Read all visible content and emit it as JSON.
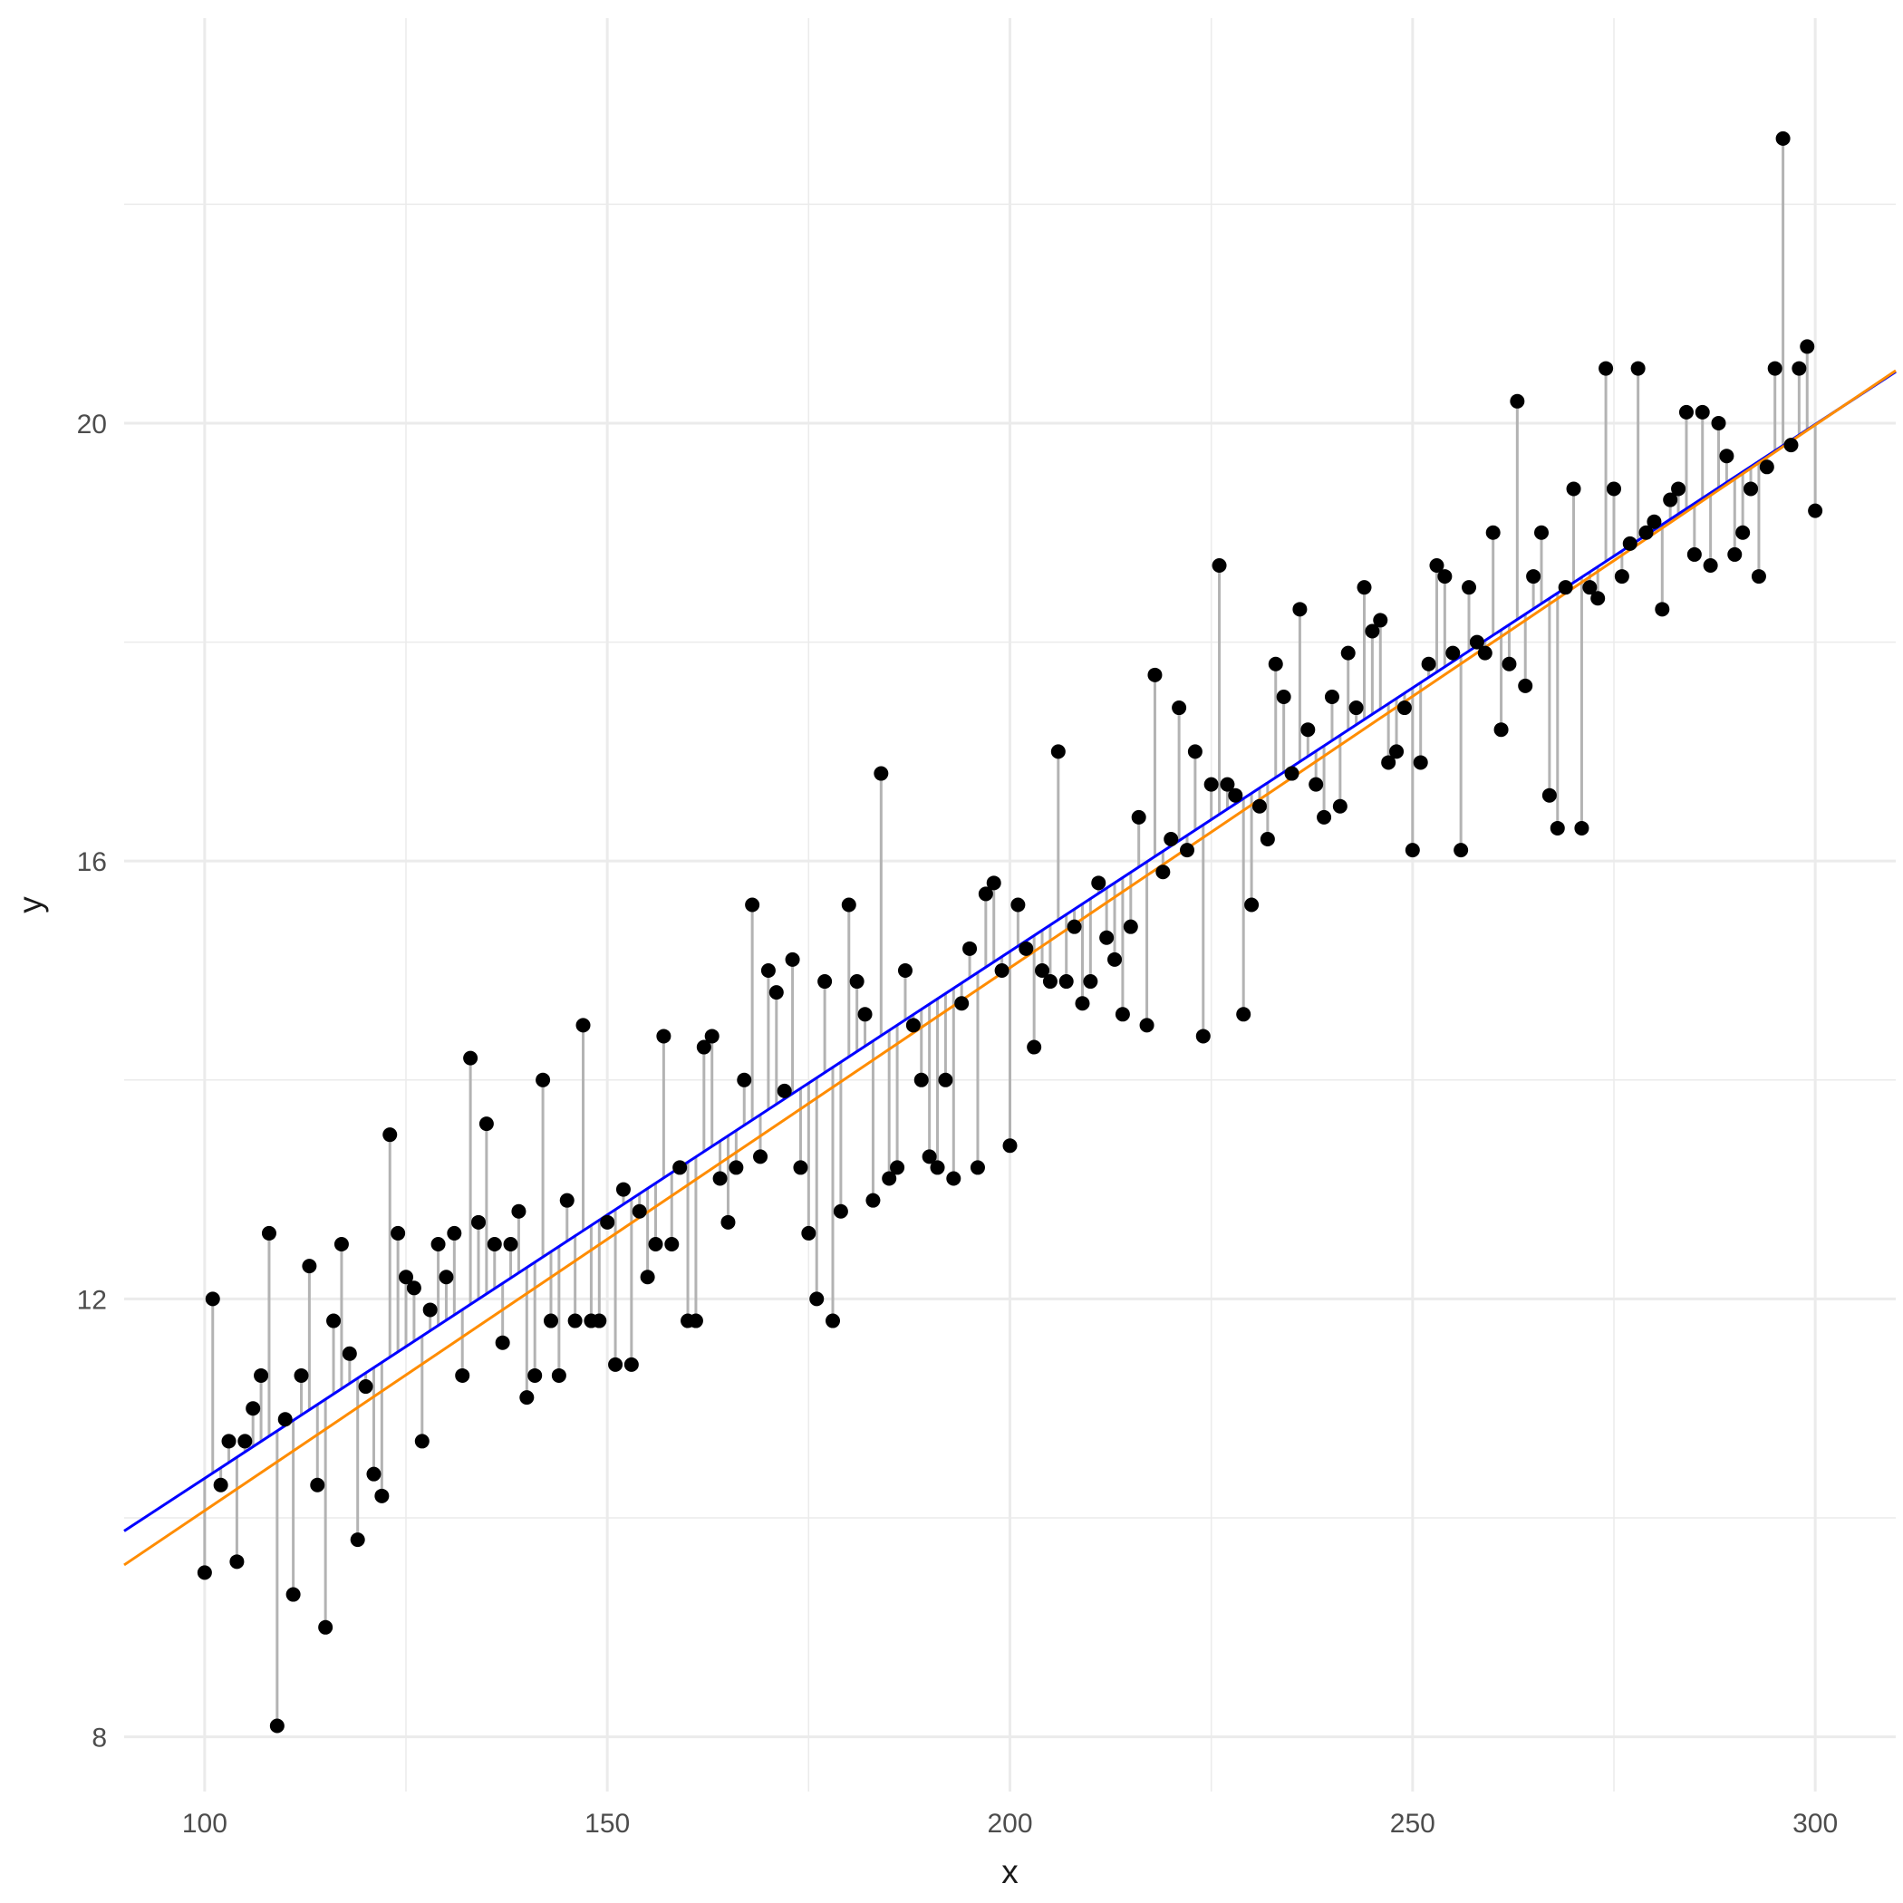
{
  "chart_data": {
    "type": "scatter",
    "title": "",
    "xlabel": "x",
    "ylabel": "y",
    "xlim": [
      90,
      310
    ],
    "ylim": [
      7.5,
      23.7
    ],
    "grid": true,
    "x_ticks": [
      100,
      150,
      200,
      250,
      300
    ],
    "x_tick_labels": [
      "100",
      "150",
      "200",
      "250",
      "300"
    ],
    "y_ticks": [
      8,
      12,
      16,
      20
    ],
    "y_tick_labels": [
      "8",
      "12",
      "16",
      "20"
    ],
    "colors": {
      "points": "#000000",
      "residual_segments": "#b3b3b3",
      "fit_line_blue": "#0000ff",
      "fit_line_orange": "#ff8c00",
      "grid": "#ebebeb"
    },
    "series": [
      {
        "type": "scatter",
        "x": [
          100,
          101,
          102,
          103,
          104,
          105,
          106,
          107,
          108,
          109,
          110,
          111,
          112,
          113,
          114,
          115,
          116,
          117,
          118,
          119,
          120,
          121,
          122,
          123,
          124,
          125,
          126,
          127,
          128,
          129,
          130,
          131,
          132,
          133,
          134,
          135,
          136,
          137,
          138,
          139,
          140,
          141,
          142,
          143,
          144,
          145,
          146,
          147,
          148,
          149,
          150,
          151,
          152,
          153,
          154,
          155,
          156,
          157,
          158,
          159,
          160,
          161,
          162,
          163,
          164,
          165,
          166,
          167,
          168,
          169,
          170,
          171,
          172,
          173,
          174,
          175,
          176,
          177,
          178,
          179,
          180,
          181,
          182,
          183,
          184,
          185,
          186,
          187,
          188,
          189,
          190,
          191,
          192,
          193,
          194,
          195,
          196,
          197,
          198,
          199,
          200,
          201,
          202,
          203,
          204,
          205,
          206,
          207,
          208,
          209,
          210,
          211,
          212,
          213,
          214,
          215,
          216,
          217,
          218,
          219,
          220,
          221,
          222,
          223,
          224,
          225,
          226,
          227,
          228,
          229,
          230,
          231,
          232,
          233,
          234,
          235,
          236,
          237,
          238,
          239,
          240,
          241,
          242,
          243,
          244,
          245,
          246,
          247,
          248,
          249,
          250,
          251,
          252,
          253,
          254,
          255,
          256,
          257,
          258,
          259,
          260,
          261,
          262,
          263,
          264,
          265,
          266,
          267,
          268,
          269,
          270,
          271,
          272,
          273,
          274,
          275,
          276,
          277,
          278,
          279,
          280,
          281,
          282,
          283,
          284,
          285,
          286,
          287,
          288,
          289,
          290,
          291,
          292,
          293,
          294,
          295,
          296,
          297,
          298,
          299,
          300
        ],
        "y": [
          9.5,
          12.0,
          10.3,
          10.7,
          9.6,
          10.7,
          11.0,
          11.3,
          12.6,
          8.1,
          10.9,
          9.3,
          11.3,
          12.3,
          10.3,
          9.0,
          11.8,
          12.5,
          11.5,
          9.8,
          11.2,
          10.4,
          10.2,
          13.5,
          12.6,
          12.2,
          12.1,
          10.7,
          11.9,
          12.5,
          12.2,
          12.6,
          11.3,
          14.2,
          12.7,
          13.6,
          12.5,
          11.6,
          12.5,
          12.8,
          11.1,
          11.3,
          14.0,
          11.8,
          11.3,
          12.9,
          11.8,
          14.5,
          11.8,
          11.8,
          12.7,
          11.4,
          13.0,
          11.4,
          12.8,
          12.2,
          12.5,
          14.4,
          12.5,
          13.2,
          11.8,
          11.8,
          14.3,
          14.4,
          13.1,
          12.7,
          13.2,
          14.0,
          15.6,
          13.3,
          15.0,
          14.8,
          13.9,
          15.1,
          13.2,
          12.6,
          12.0,
          14.9,
          11.8,
          12.8,
          15.6,
          14.9,
          14.6,
          12.9,
          16.8,
          13.1,
          13.2,
          15.0,
          14.5,
          14.0,
          13.3,
          13.2,
          14.0,
          13.1,
          14.7,
          15.2,
          13.2,
          15.7,
          15.8,
          15.0,
          13.4,
          15.6,
          15.2,
          14.3,
          15.0,
          14.9,
          17.0,
          14.9,
          15.4,
          14.7,
          14.9,
          15.8,
          15.3,
          15.1,
          14.6,
          15.4,
          16.4,
          14.5,
          17.7,
          15.9,
          16.2,
          17.4,
          16.1,
          17.0,
          14.4,
          16.7,
          18.7,
          16.7,
          16.6,
          14.6,
          15.6,
          16.5,
          16.2,
          17.8,
          17.5,
          16.8,
          18.3,
          17.2,
          16.7,
          16.4,
          17.5,
          16.5,
          17.9,
          17.4,
          18.5,
          18.1,
          18.2,
          16.9,
          17.0,
          17.4,
          16.1,
          16.9,
          17.8,
          18.7,
          18.6,
          17.9,
          16.1,
          18.5,
          18.0,
          17.9,
          19.0,
          17.2,
          17.8,
          20.2,
          17.6,
          18.6,
          19.0,
          16.6,
          16.3,
          18.5,
          19.4,
          16.3,
          18.5,
          18.4,
          20.5,
          19.4,
          18.6,
          18.9,
          20.5,
          19.0,
          19.1,
          18.3,
          19.3,
          19.4,
          20.1,
          18.8,
          20.1,
          18.7,
          20.0,
          19.7,
          18.8,
          19.0,
          19.4,
          18.6,
          19.6,
          20.5,
          22.6,
          19.8,
          20.5,
          20.7,
          19.2
        ]
      },
      {
        "type": "line",
        "name": "",
        "color": "#0000ff",
        "x": [
          90,
          310
        ],
        "y": [
          9.88,
          20.47
        ]
      },
      {
        "type": "line",
        "name": "",
        "color": "#ff8c00",
        "x": [
          90,
          310
        ],
        "y": [
          9.57,
          20.48
        ]
      }
    ]
  }
}
